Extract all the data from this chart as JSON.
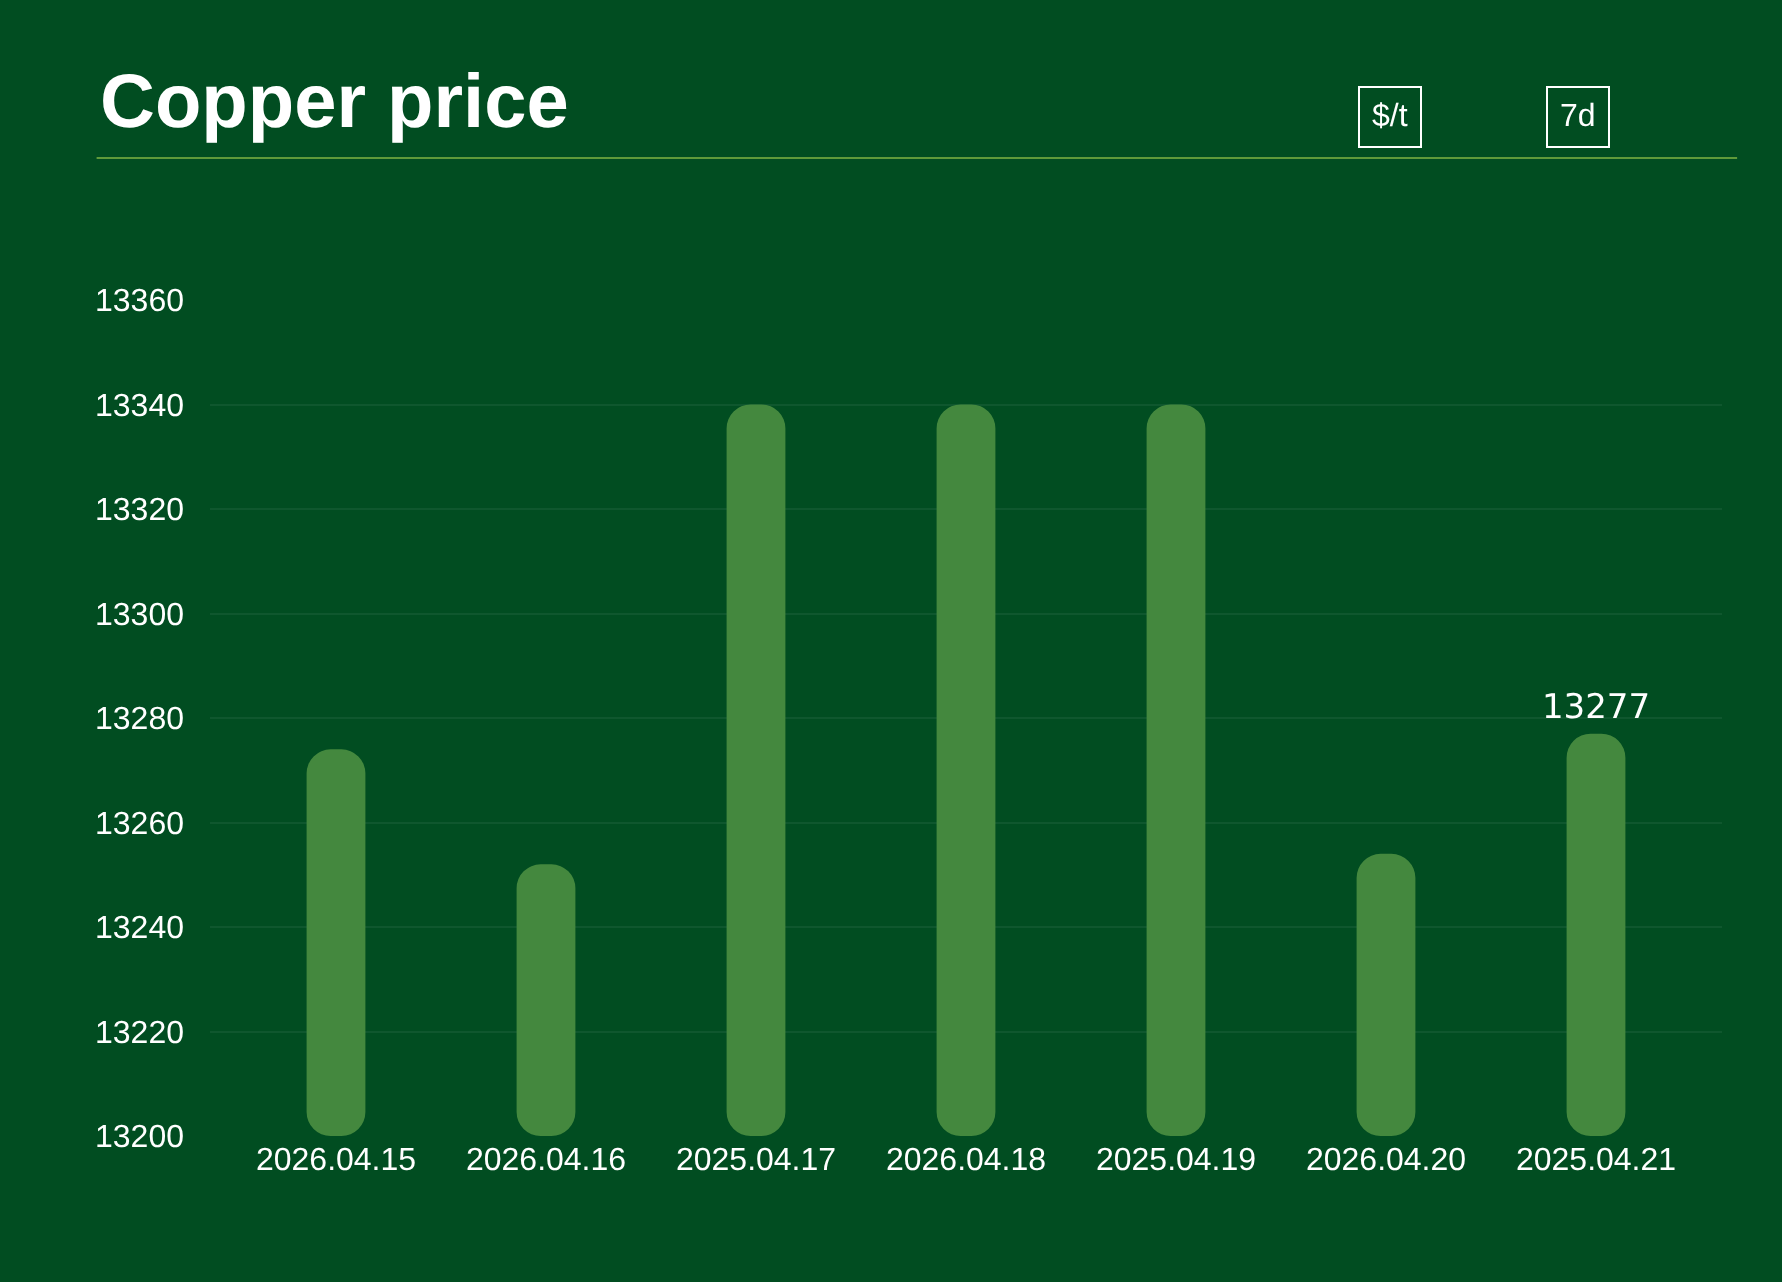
{
  "chart_data": {
    "type": "bar",
    "title": "Copper price",
    "annotations": [
      "$/t",
      "7d"
    ],
    "categories": [
      "2026.04.15",
      "2026.04.16",
      "2025.04.17",
      "2026.04.18",
      "2025.04.19",
      "2026.04.20",
      "2025.04.21"
    ],
    "values": [
      13274,
      13252,
      13340,
      13340,
      13340,
      13254,
      13277
    ],
    "value_labels": [
      null,
      null,
      null,
      null,
      null,
      null,
      "13277"
    ],
    "color": "#44883e",
    "ylim": [
      13200,
      13360
    ],
    "yticks": [
      13200,
      13220,
      13240,
      13260,
      13280,
      13300,
      13320,
      13340,
      13360
    ],
    "grid": "y",
    "legend": false
  }
}
